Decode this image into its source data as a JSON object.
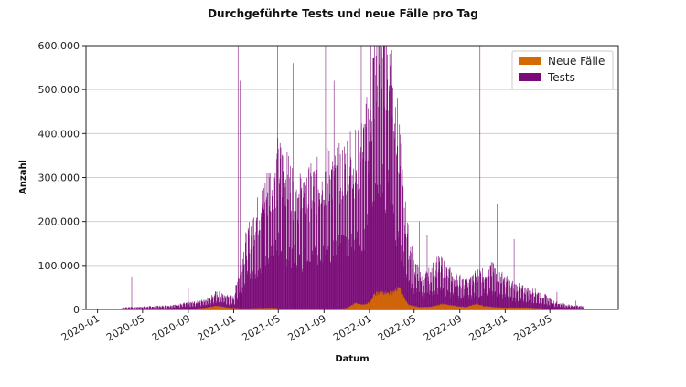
{
  "chart_data": {
    "type": "bar",
    "title": "Durchgeführte Tests und neue Fälle pro Tag",
    "xlabel": "Datum",
    "ylabel": "Anzahl",
    "x_ticks": [
      "2020-01",
      "2020-05",
      "2020-09",
      "2021-01",
      "2021-05",
      "2021-09",
      "2022-01",
      "2022-05",
      "2022-09",
      "2023-01",
      "2023-05"
    ],
    "xlim": [
      "2019-12-01",
      "2023-11-01"
    ],
    "y_ticks": [
      "0",
      "100.000",
      "200.000",
      "300.000",
      "400.000",
      "500.000",
      "600.000"
    ],
    "ylim": [
      0,
      600000
    ],
    "grid": "horizontal",
    "legend": {
      "position": "top-right",
      "entries": [
        "Neue Fälle",
        "Tests"
      ]
    },
    "colors": {
      "tests": "#7b0a78",
      "cases": "#d46a00"
    },
    "series": [
      {
        "name": "Tests",
        "color": "#7b0a78",
        "points": [
          [
            "2020-03-05",
            3000
          ],
          [
            "2020-03-20",
            5000
          ],
          [
            "2020-04-01",
            5000
          ],
          [
            "2020-04-15",
            5000
          ],
          [
            "2020-05-01",
            6000
          ],
          [
            "2020-05-15",
            6000
          ],
          [
            "2020-06-01",
            7000
          ],
          [
            "2020-06-15",
            7000
          ],
          [
            "2020-07-01",
            8000
          ],
          [
            "2020-07-15",
            9000
          ],
          [
            "2020-08-01",
            10000
          ],
          [
            "2020-08-15",
            12000
          ],
          [
            "2020-09-01",
            14000
          ],
          [
            "2020-09-15",
            15000
          ],
          [
            "2020-10-01",
            17000
          ],
          [
            "2020-10-15",
            22000
          ],
          [
            "2020-11-01",
            28000
          ],
          [
            "2020-11-15",
            35000
          ],
          [
            "2020-12-01",
            32000
          ],
          [
            "2020-12-15",
            28000
          ],
          [
            "2021-01-01",
            25000
          ],
          [
            "2021-01-10",
            60000
          ],
          [
            "2021-01-20",
            100000
          ],
          [
            "2021-02-01",
            140000
          ],
          [
            "2021-02-15",
            175000
          ],
          [
            "2021-03-01",
            200000
          ],
          [
            "2021-03-15",
            230000
          ],
          [
            "2021-04-01",
            265000
          ],
          [
            "2021-04-15",
            290000
          ],
          [
            "2021-05-01",
            320000
          ],
          [
            "2021-05-15",
            300000
          ],
          [
            "2021-06-01",
            280000
          ],
          [
            "2021-06-15",
            260000
          ],
          [
            "2021-07-01",
            250000
          ],
          [
            "2021-07-15",
            260000
          ],
          [
            "2021-08-01",
            270000
          ],
          [
            "2021-08-15",
            280000
          ],
          [
            "2021-09-01",
            300000
          ],
          [
            "2021-09-15",
            300000
          ],
          [
            "2021-10-01",
            290000
          ],
          [
            "2021-10-15",
            310000
          ],
          [
            "2021-11-01",
            330000
          ],
          [
            "2021-11-15",
            340000
          ],
          [
            "2021-12-01",
            330000
          ],
          [
            "2021-12-15",
            360000
          ],
          [
            "2022-01-01",
            420000
          ],
          [
            "2022-01-15",
            550000
          ],
          [
            "2022-02-01",
            600000
          ],
          [
            "2022-02-15",
            600000
          ],
          [
            "2022-03-01",
            520000
          ],
          [
            "2022-03-15",
            400000
          ],
          [
            "2022-04-01",
            250000
          ],
          [
            "2022-04-15",
            150000
          ],
          [
            "2022-05-01",
            100000
          ],
          [
            "2022-05-15",
            75000
          ],
          [
            "2022-06-01",
            70000
          ],
          [
            "2022-06-15",
            80000
          ],
          [
            "2022-07-01",
            100000
          ],
          [
            "2022-07-15",
            95000
          ],
          [
            "2022-08-01",
            80000
          ],
          [
            "2022-08-15",
            70000
          ],
          [
            "2022-09-01",
            65000
          ],
          [
            "2022-09-15",
            55000
          ],
          [
            "2022-10-01",
            65000
          ],
          [
            "2022-10-15",
            75000
          ],
          [
            "2022-11-01",
            80000
          ],
          [
            "2022-11-15",
            90000
          ],
          [
            "2022-12-01",
            85000
          ],
          [
            "2022-12-15",
            75000
          ],
          [
            "2023-01-01",
            65000
          ],
          [
            "2023-01-15",
            55000
          ],
          [
            "2023-02-01",
            50000
          ],
          [
            "2023-02-15",
            45000
          ],
          [
            "2023-03-01",
            42000
          ],
          [
            "2023-03-15",
            40000
          ],
          [
            "2023-04-01",
            35000
          ],
          [
            "2023-04-15",
            30000
          ],
          [
            "2023-05-01",
            20000
          ],
          [
            "2023-05-15",
            15000
          ],
          [
            "2023-06-01",
            12000
          ],
          [
            "2023-06-15",
            10000
          ],
          [
            "2023-07-01",
            8000
          ],
          [
            "2023-07-15",
            8000
          ],
          [
            "2023-07-31",
            7000
          ]
        ],
        "spikes": [
          [
            "2020-04-02",
            75000
          ],
          [
            "2020-09-01",
            48000
          ],
          [
            "2021-01-13",
            600000
          ],
          [
            "2021-01-18",
            520000
          ],
          [
            "2021-04-29",
            600000
          ],
          [
            "2021-06-10",
            560000
          ],
          [
            "2021-09-05",
            600000
          ],
          [
            "2021-09-28",
            520000
          ],
          [
            "2021-12-10",
            600000
          ],
          [
            "2022-01-05",
            600000
          ],
          [
            "2022-05-15",
            200000
          ],
          [
            "2022-06-05",
            170000
          ],
          [
            "2022-10-25",
            600000
          ],
          [
            "2022-12-10",
            240000
          ],
          [
            "2023-01-25",
            160000
          ],
          [
            "2023-05-20",
            40000
          ],
          [
            "2023-07-10",
            20000
          ]
        ]
      },
      {
        "name": "Neue Fälle",
        "color": "#d46a00",
        "points": [
          [
            "2020-03-05",
            0
          ],
          [
            "2020-03-25",
            1000
          ],
          [
            "2020-04-15",
            1500
          ],
          [
            "2020-05-15",
            500
          ],
          [
            "2020-07-15",
            500
          ],
          [
            "2020-09-15",
            1500
          ],
          [
            "2020-10-15",
            3500
          ],
          [
            "2020-11-01",
            6000
          ],
          [
            "2020-11-15",
            8000
          ],
          [
            "2020-12-01",
            6000
          ],
          [
            "2020-12-15",
            4000
          ],
          [
            "2021-01-01",
            3000
          ],
          [
            "2021-02-01",
            2000
          ],
          [
            "2021-03-15",
            3000
          ],
          [
            "2021-04-15",
            3500
          ],
          [
            "2021-05-15",
            1500
          ],
          [
            "2021-07-01",
            1000
          ],
          [
            "2021-08-15",
            2000
          ],
          [
            "2021-10-01",
            1000
          ],
          [
            "2021-11-01",
            3000
          ],
          [
            "2021-11-25",
            15000
          ],
          [
            "2021-12-10",
            10000
          ],
          [
            "2022-01-01",
            15000
          ],
          [
            "2022-01-15",
            35000
          ],
          [
            "2022-02-01",
            40000
          ],
          [
            "2022-02-15",
            35000
          ],
          [
            "2022-03-10",
            40000
          ],
          [
            "2022-03-20",
            50000
          ],
          [
            "2022-04-01",
            30000
          ],
          [
            "2022-04-15",
            10000
          ],
          [
            "2022-05-15",
            5000
          ],
          [
            "2022-06-15",
            6000
          ],
          [
            "2022-07-15",
            12000
          ],
          [
            "2022-08-01",
            10000
          ],
          [
            "2022-09-15",
            5000
          ],
          [
            "2022-10-15",
            12000
          ],
          [
            "2022-11-01",
            8000
          ],
          [
            "2022-12-01",
            5000
          ],
          [
            "2023-01-01",
            4000
          ],
          [
            "2023-03-01",
            4000
          ],
          [
            "2023-05-01",
            1500
          ],
          [
            "2023-07-31",
            500
          ]
        ]
      }
    ]
  }
}
